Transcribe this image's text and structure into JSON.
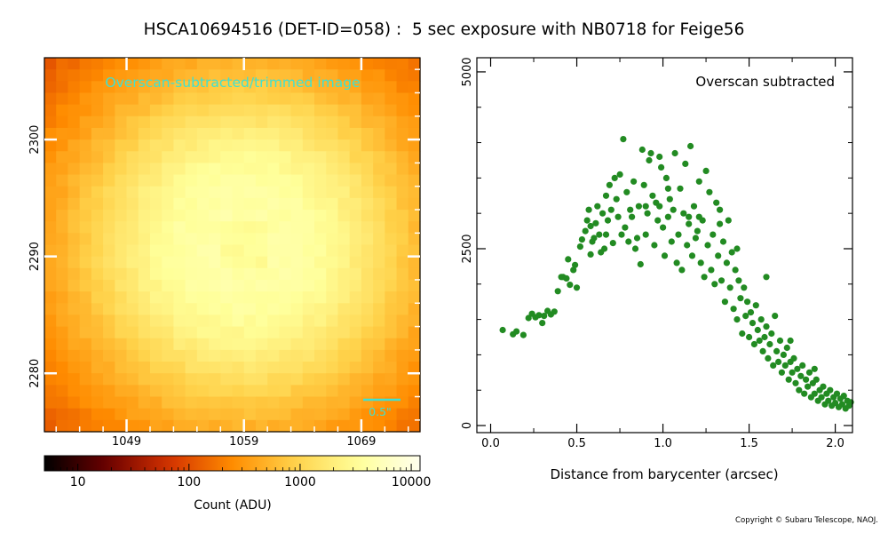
{
  "title": "HSCA10694516 (DET-ID=058) :  5 sec exposure with NB0718 for Feige56",
  "copyright": "Copyright © Subaru Telescope, NAOJ.",
  "colors": {
    "scatter": "#228b22",
    "annotation": "#40e0d0",
    "colormap": [
      "#000000",
      "#6b0000",
      "#d43200",
      "#ff8c00",
      "#ffd24a",
      "#ffff99",
      "#ffffee"
    ]
  },
  "chart_data": [
    {
      "type": "heatmap",
      "annotation": "Overscan-subtracted/trimmed image",
      "x_ticks": [
        1049,
        1059,
        1069
      ],
      "y_ticks": [
        2280,
        2290,
        2300
      ],
      "xlim": [
        1042.5,
        1074.5
      ],
      "ylim": [
        2275.5,
        2307.5
      ],
      "grid": "32x32 pixels",
      "center": [
        1059.5,
        2291.5
      ],
      "scalebar_label": "0.5\"",
      "colorbar": {
        "label": "Count (ADU)",
        "scale": "log",
        "range": [
          5,
          12000
        ],
        "ticks": [
          10,
          100,
          1000,
          10000
        ],
        "tick_labels": [
          "10",
          "100",
          "1000",
          "10000"
        ]
      },
      "peak_count": 4000
    },
    {
      "type": "scatter",
      "annotation": "Overscan subtracted",
      "xlabel": "Distance from barycenter (arcsec)",
      "ylabel": "",
      "xlim": [
        -0.08,
        2.1
      ],
      "ylim": [
        -100,
        5200
      ],
      "x_ticks": [
        0.0,
        0.5,
        1.0,
        1.5,
        2.0
      ],
      "x_tick_labels": [
        "0.0",
        "0.5",
        "1.0",
        "1.5",
        "2.0"
      ],
      "y_ticks": [
        0,
        2500,
        5000
      ],
      "y_tick_labels": [
        "0",
        "2500",
        "5000"
      ],
      "grid": false,
      "color": "#228b22",
      "points": [
        [
          0.07,
          1350
        ],
        [
          0.13,
          1290
        ],
        [
          0.15,
          1330
        ],
        [
          0.19,
          1280
        ],
        [
          0.22,
          1520
        ],
        [
          0.24,
          1580
        ],
        [
          0.26,
          1530
        ],
        [
          0.28,
          1560
        ],
        [
          0.3,
          1450
        ],
        [
          0.31,
          1550
        ],
        [
          0.33,
          1620
        ],
        [
          0.35,
          1570
        ],
        [
          0.37,
          1610
        ],
        [
          0.39,
          1900
        ],
        [
          0.41,
          2100
        ],
        [
          0.42,
          2100
        ],
        [
          0.44,
          2080
        ],
        [
          0.45,
          2350
        ],
        [
          0.46,
          1990
        ],
        [
          0.48,
          2200
        ],
        [
          0.49,
          2270
        ],
        [
          0.5,
          1950
        ],
        [
          0.52,
          2530
        ],
        [
          0.53,
          2630
        ],
        [
          0.55,
          2750
        ],
        [
          0.56,
          2900
        ],
        [
          0.57,
          3050
        ],
        [
          0.58,
          2820
        ],
        [
          0.59,
          2600
        ],
        [
          0.6,
          2650
        ],
        [
          0.61,
          2860
        ],
        [
          0.62,
          3100
        ],
        [
          0.63,
          2700
        ],
        [
          0.64,
          2450
        ],
        [
          0.65,
          3000
        ],
        [
          0.66,
          2500
        ],
        [
          0.67,
          3250
        ],
        [
          0.68,
          2900
        ],
        [
          0.69,
          3400
        ],
        [
          0.7,
          3050
        ],
        [
          0.71,
          2580
        ],
        [
          0.72,
          3500
        ],
        [
          0.73,
          3200
        ],
        [
          0.74,
          2950
        ],
        [
          0.75,
          3550
        ],
        [
          0.76,
          2700
        ],
        [
          0.77,
          4050
        ],
        [
          0.78,
          2800
        ],
        [
          0.79,
          3300
        ],
        [
          0.8,
          2600
        ],
        [
          0.81,
          3050
        ],
        [
          0.82,
          2950
        ],
        [
          0.83,
          3450
        ],
        [
          0.84,
          2500
        ],
        [
          0.85,
          2650
        ],
        [
          0.86,
          3100
        ],
        [
          0.87,
          2280
        ],
        [
          0.88,
          3900
        ],
        [
          0.89,
          3400
        ],
        [
          0.9,
          2700
        ],
        [
          0.91,
          3000
        ],
        [
          0.92,
          3750
        ],
        [
          0.93,
          3850
        ],
        [
          0.94,
          3250
        ],
        [
          0.95,
          2550
        ],
        [
          0.96,
          3150
        ],
        [
          0.97,
          2900
        ],
        [
          0.98,
          3800
        ],
        [
          0.99,
          3650
        ],
        [
          1.0,
          2800
        ],
        [
          1.01,
          2400
        ],
        [
          1.02,
          3500
        ],
        [
          1.03,
          2950
        ],
        [
          1.04,
          3200
        ],
        [
          1.05,
          2600
        ],
        [
          1.06,
          3050
        ],
        [
          1.07,
          3850
        ],
        [
          1.08,
          2300
        ],
        [
          1.09,
          2700
        ],
        [
          1.1,
          3350
        ],
        [
          1.11,
          2200
        ],
        [
          1.12,
          3000
        ],
        [
          1.13,
          3700
        ],
        [
          1.14,
          2550
        ],
        [
          1.15,
          2850
        ],
        [
          1.16,
          3950
        ],
        [
          1.17,
          2400
        ],
        [
          1.18,
          3100
        ],
        [
          1.19,
          2650
        ],
        [
          1.2,
          2750
        ],
        [
          1.21,
          3450
        ],
        [
          1.22,
          2300
        ],
        [
          1.23,
          2900
        ],
        [
          1.24,
          2100
        ],
        [
          1.25,
          3600
        ],
        [
          1.26,
          2550
        ],
        [
          1.27,
          3300
        ],
        [
          1.28,
          2200
        ],
        [
          1.29,
          2700
        ],
        [
          1.3,
          2000
        ],
        [
          1.31,
          3150
        ],
        [
          1.32,
          2400
        ],
        [
          1.33,
          2850
        ],
        [
          1.34,
          2050
        ],
        [
          1.35,
          2600
        ],
        [
          1.36,
          1750
        ],
        [
          1.37,
          2300
        ],
        [
          1.38,
          2900
        ],
        [
          1.39,
          1950
        ],
        [
          1.4,
          2450
        ],
        [
          1.41,
          1650
        ],
        [
          1.42,
          2200
        ],
        [
          1.43,
          1500
        ],
        [
          1.44,
          2050
        ],
        [
          1.45,
          1800
        ],
        [
          1.46,
          1300
        ],
        [
          1.47,
          1950
        ],
        [
          1.48,
          1550
        ],
        [
          1.49,
          1750
        ],
        [
          1.5,
          1250
        ],
        [
          1.51,
          1600
        ],
        [
          1.52,
          1450
        ],
        [
          1.53,
          1150
        ],
        [
          1.54,
          1700
        ],
        [
          1.55,
          1350
        ],
        [
          1.56,
          1200
        ],
        [
          1.57,
          1500
        ],
        [
          1.58,
          1050
        ],
        [
          1.59,
          1250
        ],
        [
          1.6,
          1400
        ],
        [
          1.61,
          950
        ],
        [
          1.62,
          1150
        ],
        [
          1.63,
          1300
        ],
        [
          1.64,
          850
        ],
        [
          1.65,
          1550
        ],
        [
          1.66,
          1050
        ],
        [
          1.67,
          900
        ],
        [
          1.68,
          1200
        ],
        [
          1.69,
          750
        ],
        [
          1.7,
          1000
        ],
        [
          1.71,
          850
        ],
        [
          1.72,
          1100
        ],
        [
          1.73,
          650
        ],
        [
          1.74,
          900
        ],
        [
          1.75,
          750
        ],
        [
          1.76,
          950
        ],
        [
          1.77,
          600
        ],
        [
          1.78,
          800
        ],
        [
          1.79,
          500
        ],
        [
          1.8,
          700
        ],
        [
          1.81,
          850
        ],
        [
          1.82,
          450
        ],
        [
          1.83,
          650
        ],
        [
          1.84,
          550
        ],
        [
          1.85,
          750
        ],
        [
          1.86,
          400
        ],
        [
          1.87,
          600
        ],
        [
          1.88,
          450
        ],
        [
          1.89,
          650
        ],
        [
          1.9,
          350
        ],
        [
          1.91,
          500
        ],
        [
          1.92,
          400
        ],
        [
          1.93,
          550
        ],
        [
          1.94,
          300
        ],
        [
          1.95,
          450
        ],
        [
          1.96,
          350
        ],
        [
          1.97,
          500
        ],
        [
          1.98,
          280
        ],
        [
          1.99,
          400
        ],
        [
          2.0,
          320
        ],
        [
          2.01,
          450
        ],
        [
          2.02,
          260
        ],
        [
          2.03,
          380
        ],
        [
          2.04,
          300
        ],
        [
          2.05,
          420
        ],
        [
          2.06,
          240
        ],
        [
          2.07,
          350
        ],
        [
          2.08,
          280
        ],
        [
          2.09,
          330
        ],
        [
          1.03,
          3350
        ],
        [
          0.98,
          3100
        ],
        [
          1.21,
          2950
        ],
        [
          1.33,
          3050
        ],
        [
          0.58,
          2420
        ],
        [
          1.15,
          2950
        ],
        [
          0.9,
          3100
        ],
        [
          0.67,
          2700
        ],
        [
          1.43,
          2500
        ],
        [
          1.6,
          2100
        ],
        [
          1.88,
          800
        ],
        [
          1.74,
          1200
        ]
      ]
    }
  ]
}
